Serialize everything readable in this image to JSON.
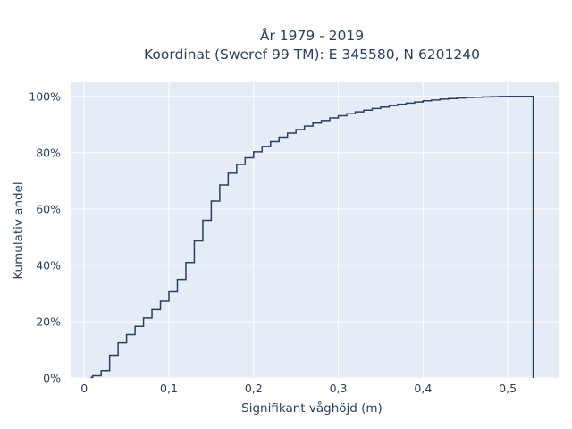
{
  "chart_data": {
    "type": "line",
    "subtype": "cumulative-step",
    "title_line1": "År 1979 - 2019",
    "title_line2": "Koordinat (Sweref 99 TM): E 345580, N 6201240",
    "xlabel": "Signifikant våghöjd (m)",
    "ylabel": "Kumulativ andel",
    "xlim": [
      -0.015,
      0.56
    ],
    "ylim": [
      0,
      1.05
    ],
    "x_ticks": [
      0,
      0.1,
      0.2,
      0.3,
      0.4,
      0.5
    ],
    "x_tick_labels": [
      "0",
      "0,1",
      "0,2",
      "0,3",
      "0,4",
      "0,5"
    ],
    "y_ticks": [
      0,
      0.2,
      0.4,
      0.6,
      0.8,
      1.0
    ],
    "y_tick_labels": [
      "0%",
      "20%",
      "40%",
      "60%",
      "80%",
      "100%"
    ],
    "grid": true,
    "line_color": "#2a3f5f",
    "plot_bg": "#e5ecf6",
    "x": [
      0.01,
      0.02,
      0.03,
      0.04,
      0.05,
      0.06,
      0.07,
      0.08,
      0.09,
      0.1,
      0.11,
      0.12,
      0.13,
      0.14,
      0.15,
      0.16,
      0.17,
      0.18,
      0.19,
      0.2,
      0.21,
      0.22,
      0.23,
      0.24,
      0.25,
      0.26,
      0.27,
      0.28,
      0.29,
      0.3,
      0.31,
      0.32,
      0.33,
      0.34,
      0.35,
      0.36,
      0.37,
      0.38,
      0.39,
      0.4,
      0.41,
      0.42,
      0.43,
      0.44,
      0.45,
      0.46,
      0.47,
      0.48,
      0.49,
      0.5,
      0.51,
      0.52,
      0.53
    ],
    "y": [
      0.002,
      0.008,
      0.026,
      0.081,
      0.125,
      0.154,
      0.183,
      0.213,
      0.243,
      0.273,
      0.306,
      0.35,
      0.41,
      0.487,
      0.56,
      0.628,
      0.685,
      0.727,
      0.758,
      0.782,
      0.803,
      0.822,
      0.839,
      0.855,
      0.869,
      0.882,
      0.894,
      0.905,
      0.914,
      0.923,
      0.931,
      0.938,
      0.945,
      0.951,
      0.957,
      0.962,
      0.967,
      0.972,
      0.976,
      0.98,
      0.984,
      0.987,
      0.99,
      0.992,
      0.994,
      0.996,
      0.997,
      0.998,
      0.999,
      0.9995,
      1.0,
      1.0,
      1.0
    ],
    "end_drop_x": 0.53
  }
}
